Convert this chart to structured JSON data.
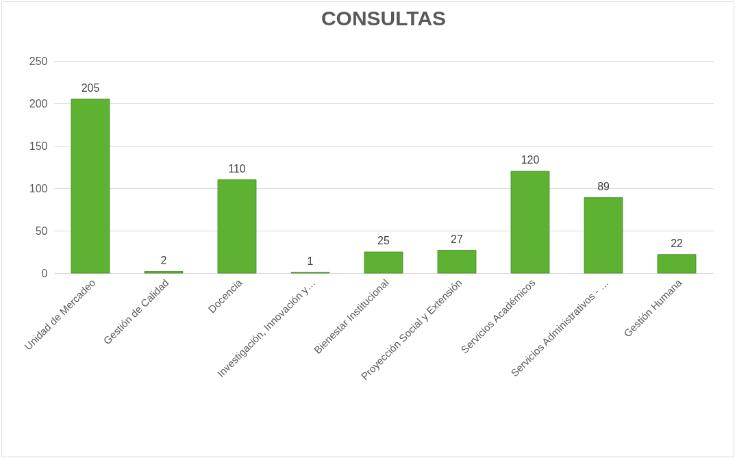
{
  "chart_data": {
    "type": "bar",
    "title": "CONSULTAS",
    "categories": [
      "Unidad de Mercadeo",
      "Gestión de Calidad",
      "Docencia",
      "Investigación, Innovación y…",
      "Bienestar Institucional",
      "Proyección Social y Extensión",
      "Servicios Académicos",
      "Servicios Administrativos - …",
      "Gestión Humana"
    ],
    "values": [
      205,
      2,
      110,
      1,
      25,
      27,
      120,
      89,
      22
    ],
    "color": "#5db231",
    "ylim": [
      0,
      250
    ],
    "yticks": [
      0,
      50,
      100,
      150,
      200,
      250
    ],
    "grid": "y",
    "data_labels": true
  }
}
